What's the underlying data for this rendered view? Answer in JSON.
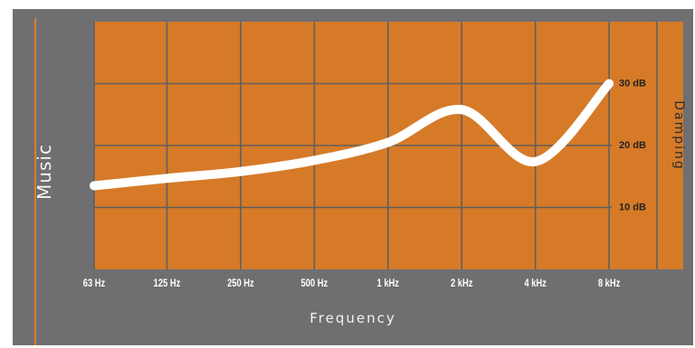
{
  "chart_data": {
    "type": "line",
    "title": "Music",
    "xlabel": "Frequency",
    "ylabel": "Damping",
    "x_tick_labels": [
      "63 Hz",
      "125 Hz",
      "250 Hz",
      "500 Hz",
      "1 kHz",
      "2 kHz",
      "4 kHz",
      "8 kHz"
    ],
    "x_scale": "log2",
    "y_tick_labels": [
      "30 dB",
      "20 dB",
      "10 dB"
    ],
    "y_ticks": [
      30,
      20,
      10
    ],
    "ylim": [
      0,
      40
    ],
    "x": [
      63,
      125,
      250,
      500,
      1000,
      2000,
      4000,
      8000
    ],
    "series": [
      {
        "values": [
          13.5,
          14.7,
          15.8,
          17.6,
          20.5,
          25.8,
          17.4,
          30
        ]
      }
    ],
    "grid": true
  },
  "colors": {
    "plot_background": "#d67a28",
    "grid_line": "#5f5f5f",
    "curve": "#ffffff",
    "panel": "#6f6f71",
    "text": "#f4f4f4",
    "tick_text": "#ffffff",
    "damping_text": "#2b2b2b"
  }
}
